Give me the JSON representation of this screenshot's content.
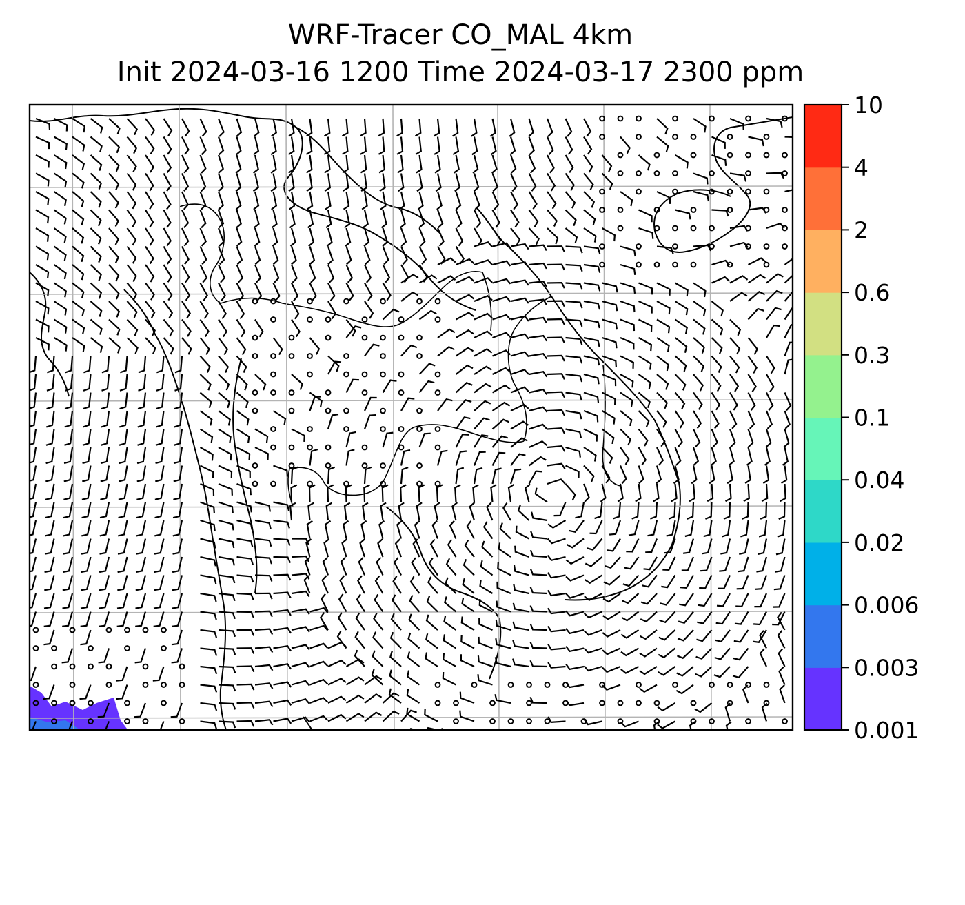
{
  "chart_data": {
    "type": "heatmap",
    "title_lines": [
      "WRF-Tracer CO_MAL 4km",
      "Init 2024-03-16 1200 Time 2024-03-17 2300 ppm"
    ],
    "colorbar": {
      "ticks": [
        "0.001",
        "0.003",
        "0.006",
        "0.02",
        "0.04",
        "0.1",
        "0.3",
        "0.6",
        "2",
        "4",
        "10"
      ],
      "colors": [
        "#6633ff",
        "#3377ee",
        "#00b0e8",
        "#2ed8c8",
        "#66f5b8",
        "#94f28e",
        "#d2e082",
        "#ffb060",
        "#ff7038",
        "#ff2a14"
      ]
    },
    "gridlines": true,
    "overlays": [
      "wind barbs",
      "coastlines",
      "country borders"
    ]
  }
}
